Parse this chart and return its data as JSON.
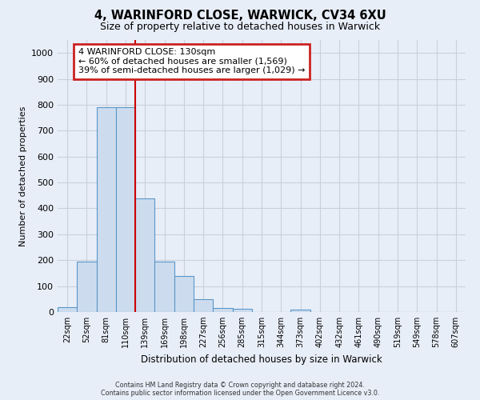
{
  "title_line1": "4, WARINFORD CLOSE, WARWICK, CV34 6XU",
  "title_line2": "Size of property relative to detached houses in Warwick",
  "xlabel": "Distribution of detached houses by size in Warwick",
  "ylabel": "Number of detached properties",
  "bar_labels": [
    "22sqm",
    "52sqm",
    "81sqm",
    "110sqm",
    "139sqm",
    "169sqm",
    "198sqm",
    "227sqm",
    "256sqm",
    "285sqm",
    "315sqm",
    "344sqm",
    "373sqm",
    "402sqm",
    "432sqm",
    "461sqm",
    "490sqm",
    "519sqm",
    "549sqm",
    "578sqm",
    "607sqm"
  ],
  "bar_values": [
    18,
    195,
    790,
    790,
    440,
    195,
    140,
    50,
    14,
    11,
    0,
    0,
    10,
    0,
    0,
    0,
    0,
    0,
    0,
    0,
    0
  ],
  "bar_color": "#ccdcee",
  "bar_edge_color": "#5a96c8",
  "vline_color": "#cc0000",
  "annotation_text": "4 WARINFORD CLOSE: 130sqm\n← 60% of detached houses are smaller (1,569)\n39% of semi-detached houses are larger (1,029) →",
  "annotation_box_color": "#cc2222",
  "ylim": [
    0,
    1050
  ],
  "yticks": [
    0,
    100,
    200,
    300,
    400,
    500,
    600,
    700,
    800,
    900,
    1000
  ],
  "grid_color": "#c8d0dc",
  "background_color": "#e8eef8",
  "footer_text1": "Contains HM Land Registry data © Crown copyright and database right 2024.",
  "footer_text2": "Contains public sector information licensed under the Open Government Licence v3.0."
}
